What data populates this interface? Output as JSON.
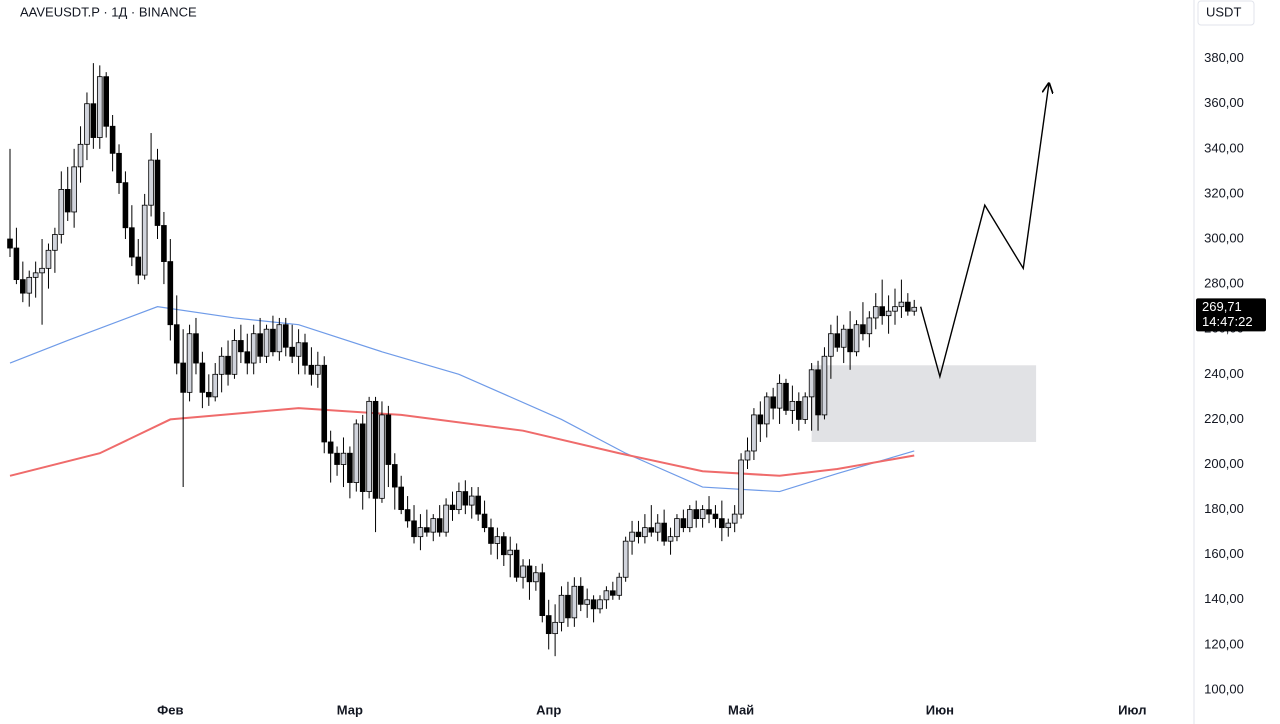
{
  "chart_data": {
    "type": "candlestick",
    "title": "AAVEUSDT.P · 1Д · BINANCE",
    "currency": "USDT",
    "up_color": "#d1d4dc",
    "down_color": "#000000",
    "xlim": [
      -25,
      159
    ],
    "xticks": [
      {
        "value": 0,
        "label": "Фев"
      },
      {
        "value": 28,
        "label": "Мар"
      },
      {
        "value": 59,
        "label": "Апр"
      },
      {
        "value": 89,
        "label": "Май"
      },
      {
        "value": 120,
        "label": "Июн"
      },
      {
        "value": 150,
        "label": "Июл"
      }
    ],
    "ylim": [
      100,
      406
    ],
    "yticks": [
      {
        "value": 100,
        "label": "100,00"
      },
      {
        "value": 120,
        "label": "120,00"
      },
      {
        "value": 140,
        "label": "140,00"
      },
      {
        "value": 160,
        "label": "160,00"
      },
      {
        "value": 180,
        "label": "180,00"
      },
      {
        "value": 200,
        "label": "200,00"
      },
      {
        "value": 220,
        "label": "220,00"
      },
      {
        "value": 240,
        "label": "240,00"
      },
      {
        "value": 260,
        "label": "260,00"
      },
      {
        "value": 280,
        "label": "280,00"
      },
      {
        "value": 300,
        "label": "300,00"
      },
      {
        "value": 320,
        "label": "320,00"
      },
      {
        "value": 340,
        "label": "340,00"
      },
      {
        "value": 360,
        "label": "360,00"
      },
      {
        "value": 380,
        "label": "380,00"
      }
    ],
    "x": [
      -25,
      -24,
      -23,
      -22,
      -21,
      -20,
      -19,
      -18,
      -17,
      -16,
      -15,
      -14,
      -13,
      -12,
      -11,
      -10,
      -9,
      -8,
      -7,
      -6,
      -5,
      -4,
      -3,
      -2,
      -1,
      0,
      1,
      2,
      3,
      4,
      5,
      6,
      7,
      8,
      9,
      10,
      11,
      12,
      13,
      14,
      15,
      16,
      17,
      18,
      19,
      20,
      21,
      22,
      23,
      24,
      25,
      26,
      27,
      28,
      29,
      30,
      31,
      32,
      33,
      34,
      35,
      36,
      37,
      38,
      39,
      40,
      41,
      42,
      43,
      44,
      45,
      46,
      47,
      48,
      49,
      50,
      51,
      52,
      53,
      54,
      55,
      56,
      57,
      58,
      59,
      60,
      61,
      62,
      63,
      64,
      65,
      66,
      67,
      68,
      69,
      70,
      71,
      72,
      73,
      74,
      75,
      76,
      77,
      78,
      79,
      80,
      81,
      82,
      83,
      84,
      85,
      86,
      87,
      88,
      89,
      90,
      91,
      92,
      93,
      94,
      95,
      96,
      97,
      98,
      99,
      100,
      101,
      102,
      103,
      104,
      105,
      106,
      107,
      108,
      109,
      110,
      111,
      112,
      113,
      114,
      115,
      116
    ],
    "candles": [
      [
        300,
        340,
        292,
        296
      ],
      [
        296,
        305,
        280,
        282
      ],
      [
        282,
        290,
        272,
        276
      ],
      [
        276,
        286,
        270,
        283
      ],
      [
        283,
        290,
        274,
        285
      ],
      [
        285,
        300,
        262,
        287
      ],
      [
        287,
        298,
        278,
        295
      ],
      [
        295,
        305,
        285,
        302
      ],
      [
        302,
        330,
        298,
        322
      ],
      [
        322,
        332,
        308,
        312
      ],
      [
        312,
        340,
        305,
        332
      ],
      [
        332,
        350,
        325,
        342
      ],
      [
        342,
        365,
        335,
        360
      ],
      [
        360,
        378,
        340,
        345
      ],
      [
        345,
        377,
        340,
        372
      ],
      [
        372,
        374,
        345,
        350
      ],
      [
        350,
        355,
        330,
        338
      ],
      [
        338,
        342,
        320,
        325
      ],
      [
        325,
        330,
        300,
        305
      ],
      [
        305,
        315,
        288,
        292
      ],
      [
        292,
        300,
        280,
        284
      ],
      [
        284,
        320,
        282,
        315
      ],
      [
        315,
        347,
        310,
        335
      ],
      [
        335,
        340,
        300,
        306
      ],
      [
        306,
        312,
        280,
        290
      ],
      [
        290,
        300,
        255,
        262
      ],
      [
        262,
        275,
        240,
        245
      ],
      [
        245,
        260,
        190,
        232
      ],
      [
        232,
        262,
        228,
        258
      ],
      [
        258,
        265,
        240,
        245
      ],
      [
        245,
        250,
        225,
        232
      ],
      [
        232,
        240,
        226,
        230
      ],
      [
        230,
        245,
        228,
        240
      ],
      [
        240,
        252,
        232,
        248
      ],
      [
        248,
        255,
        235,
        240
      ],
      [
        240,
        260,
        238,
        255
      ],
      [
        255,
        262,
        245,
        250
      ],
      [
        250,
        258,
        240,
        245
      ],
      [
        245,
        262,
        240,
        258
      ],
      [
        258,
        265,
        245,
        248
      ],
      [
        248,
        262,
        245,
        260
      ],
      [
        260,
        266,
        248,
        250
      ],
      [
        250,
        265,
        246,
        262
      ],
      [
        262,
        265,
        248,
        252
      ],
      [
        252,
        262,
        245,
        248
      ],
      [
        248,
        260,
        240,
        254
      ],
      [
        254,
        258,
        240,
        244
      ],
      [
        244,
        252,
        235,
        240
      ],
      [
        240,
        250,
        234,
        244
      ],
      [
        244,
        248,
        205,
        210
      ],
      [
        210,
        215,
        192,
        205
      ],
      [
        205,
        208,
        195,
        200
      ],
      [
        200,
        212,
        190,
        205
      ],
      [
        205,
        208,
        185,
        192
      ],
      [
        192,
        220,
        188,
        218
      ],
      [
        218,
        222,
        180,
        188
      ],
      [
        188,
        230,
        185,
        228
      ],
      [
        228,
        230,
        170,
        185
      ],
      [
        185,
        228,
        183,
        222
      ],
      [
        222,
        226,
        190,
        200
      ],
      [
        200,
        205,
        180,
        190
      ],
      [
        190,
        195,
        178,
        180
      ],
      [
        180,
        186,
        172,
        175
      ],
      [
        175,
        182,
        165,
        168
      ],
      [
        168,
        178,
        162,
        172
      ],
      [
        172,
        180,
        168,
        170
      ],
      [
        170,
        178,
        166,
        176
      ],
      [
        176,
        182,
        168,
        170
      ],
      [
        170,
        185,
        168,
        182
      ],
      [
        182,
        188,
        175,
        180
      ],
      [
        180,
        192,
        178,
        188
      ],
      [
        188,
        193,
        178,
        182
      ],
      [
        182,
        190,
        176,
        186
      ],
      [
        186,
        190,
        175,
        178
      ],
      [
        178,
        184,
        170,
        172
      ],
      [
        172,
        176,
        160,
        165
      ],
      [
        165,
        172,
        158,
        168
      ],
      [
        168,
        170,
        155,
        160
      ],
      [
        160,
        168,
        150,
        162
      ],
      [
        162,
        165,
        148,
        150
      ],
      [
        150,
        158,
        145,
        155
      ],
      [
        155,
        158,
        140,
        148
      ],
      [
        148,
        155,
        144,
        152
      ],
      [
        152,
        156,
        130,
        133
      ],
      [
        133,
        140,
        118,
        125
      ],
      [
        125,
        138,
        115,
        130
      ],
      [
        130,
        146,
        126,
        142
      ],
      [
        142,
        148,
        128,
        132
      ],
      [
        132,
        150,
        128,
        146
      ],
      [
        146,
        150,
        135,
        138
      ],
      [
        138,
        145,
        132,
        140
      ],
      [
        140,
        142,
        130,
        136
      ],
      [
        136,
        142,
        134,
        140
      ],
      [
        140,
        146,
        136,
        144
      ],
      [
        144,
        148,
        140,
        142
      ],
      [
        142,
        152,
        140,
        150
      ],
      [
        150,
        168,
        148,
        166
      ],
      [
        166,
        175,
        160,
        170
      ],
      [
        170,
        175,
        165,
        168
      ],
      [
        168,
        178,
        165,
        172
      ],
      [
        172,
        182,
        168,
        170
      ],
      [
        170,
        178,
        166,
        174
      ],
      [
        174,
        180,
        164,
        166
      ],
      [
        166,
        172,
        160,
        168
      ],
      [
        168,
        178,
        166,
        176
      ],
      [
        176,
        180,
        170,
        172
      ],
      [
        172,
        182,
        170,
        180
      ],
      [
        180,
        184,
        172,
        176
      ],
      [
        176,
        182,
        172,
        180
      ],
      [
        180,
        186,
        174,
        178
      ],
      [
        178,
        182,
        172,
        176
      ],
      [
        176,
        184,
        166,
        172
      ],
      [
        172,
        176,
        168,
        174
      ],
      [
        174,
        182,
        170,
        178
      ],
      [
        178,
        205,
        176,
        202
      ],
      [
        202,
        212,
        198,
        206
      ],
      [
        206,
        225,
        202,
        222
      ],
      [
        222,
        228,
        210,
        218
      ],
      [
        218,
        232,
        212,
        230
      ],
      [
        230,
        234,
        220,
        225
      ],
      [
        225,
        240,
        218,
        236
      ],
      [
        236,
        238,
        222,
        224
      ],
      [
        224,
        235,
        218,
        228
      ],
      [
        228,
        232,
        215,
        220
      ],
      [
        220,
        232,
        218,
        230
      ],
      [
        230,
        245,
        215,
        242
      ],
      [
        242,
        246,
        215,
        222
      ],
      [
        222,
        252,
        220,
        248
      ],
      [
        248,
        262,
        238,
        258
      ],
      [
        258,
        266,
        250,
        252
      ],
      [
        252,
        262,
        245,
        260
      ],
      [
        260,
        268,
        242,
        250
      ],
      [
        250,
        264,
        248,
        262
      ],
      [
        262,
        272,
        255,
        258
      ],
      [
        258,
        268,
        252,
        265
      ],
      [
        265,
        276,
        260,
        270
      ],
      [
        270,
        282,
        262,
        266
      ],
      [
        266,
        275,
        258,
        268
      ],
      [
        268,
        278,
        262,
        270
      ],
      [
        270,
        282,
        265,
        272
      ],
      [
        272,
        276,
        266,
        268
      ],
      [
        268,
        273,
        266,
        269.71
      ]
    ],
    "lines": [
      {
        "color": "#6f9be8",
        "x": [
          -25,
          -16,
          -2,
          10,
          20,
          33,
          45,
          61,
          71,
          83,
          95,
          104,
          116
        ],
        "values": [
          245,
          255,
          270,
          265,
          262,
          250,
          240,
          220,
          205,
          190,
          188,
          196,
          206
        ]
      },
      {
        "color": "#ef6b6b",
        "x": [
          -25,
          -11,
          0,
          20,
          36,
          55,
          70,
          83,
          95,
          104,
          116
        ],
        "values": [
          195,
          205,
          220,
          225,
          222,
          215,
          205,
          197,
          195,
          198,
          204
        ]
      }
    ],
    "last_price": {
      "value": 269.71,
      "label": "269,71",
      "countdown": "14:47:22"
    },
    "zone": {
      "x": [
        100,
        135
      ],
      "y": [
        210,
        244
      ]
    },
    "projection": {
      "x": [
        117,
        120,
        127,
        133,
        137
      ],
      "y": [
        270,
        239,
        315,
        287,
        369
      ]
    }
  }
}
